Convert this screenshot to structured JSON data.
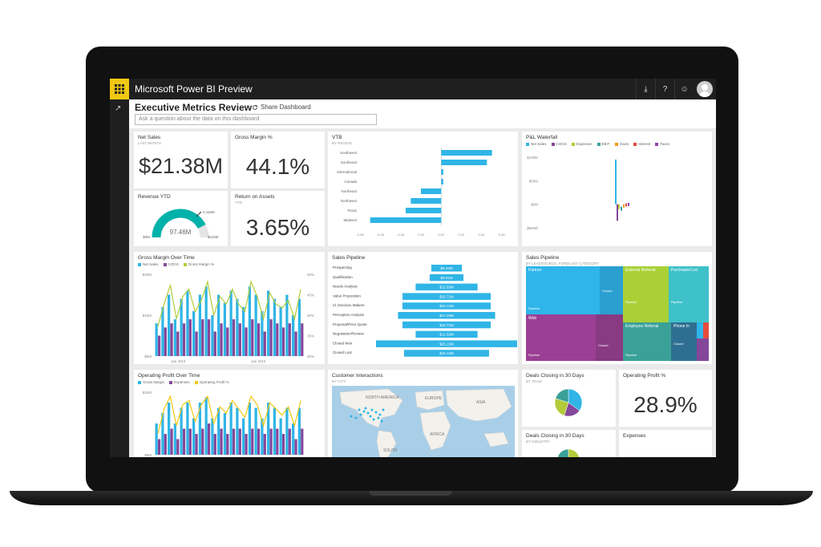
{
  "app": {
    "title": "Microsoft Power BI Preview"
  },
  "topbar": {
    "icons": [
      "download-icon",
      "help-icon",
      "feedback-icon",
      "user-avatar"
    ],
    "download": "⤓",
    "help": "?",
    "feedback": "☺"
  },
  "dashboard": {
    "title": "Executive Metrics Review",
    "share_label": "Share Dashboard",
    "qa_placeholder": "Ask a question about the data on this dashboard"
  },
  "tiles": {
    "net_sales": {
      "title": "Net Sales",
      "subtitle": "LAST MONTH",
      "value": "$21.38M"
    },
    "gross_margin": {
      "title": "Gross Margin %",
      "value": "44.1%"
    },
    "revenue_ytd": {
      "title": "Revenue YTD",
      "value": "97.46M",
      "min": "$0M",
      "max": "$115M",
      "target": "0.116M",
      "fraction": 0.85
    },
    "return_on_assets": {
      "title": "Return on Assets",
      "subtitle": "YTD",
      "value": "3.65%"
    },
    "operating_profit_pct": {
      "title": "Operating Profit %",
      "value": "28.9%"
    },
    "expenses": {
      "title": "Expenses"
    },
    "gm_over_time": {
      "title": "Gross Margin Over Time",
      "legend": [
        "Net Sales",
        "COGS",
        "Gross Margin %"
      ]
    },
    "op_over_time": {
      "title": "Operating Profit Over Time",
      "legend": [
        "Gross Margin",
        "Expenses",
        "Operating Profit %"
      ]
    },
    "customer_interactions": {
      "title": "Customer Interactions",
      "subtitle": "BY CITY",
      "labels": [
        "NORTH AMERICA",
        "EUROPE",
        "ASIA",
        "AFRICA",
        "SOUTH"
      ]
    },
    "deals_30_team": {
      "title": "Deals Closing in 30 Days",
      "subtitle": "BY TEAM"
    },
    "deals_30_industry": {
      "title": "Deals Closing in 30 Days",
      "subtitle": "BY INDUSTRY"
    },
    "sales_pipeline_tree": {
      "title": "Sales Pipeline",
      "subtitle": "BY LEADSOURCE, FORECAST CATEGORY",
      "blocks": [
        {
          "name": "Partner",
          "sub": "",
          "color": "#2fb5e9"
        },
        {
          "name": "External Referral",
          "sub": "Pipeline",
          "color": "#a9d037"
        },
        {
          "name": "Purchased List",
          "sub": "Pipeline",
          "color": "#3fc1c9"
        },
        {
          "name": "Web",
          "sub": "Pipeline",
          "color": "#9b3f94"
        },
        {
          "name": "Employee Referral",
          "sub": "Pipeline",
          "color": "#3aa198"
        },
        {
          "name": "Phone In",
          "sub": "Closed",
          "color": "#2e6f91"
        }
      ],
      "mini_labels": [
        "Closed",
        "Pipeline",
        "Closed",
        "Pipeline"
      ]
    }
  },
  "colors": {
    "blue": "#30b5e6",
    "purple": "#84479a",
    "lime": "#b4cc3a",
    "yellow": "#f2c811",
    "accent": "#00b2a9"
  },
  "chart_data": [
    {
      "type": "bar",
      "title": "VTB",
      "subtitle": "BY REGION",
      "categories": [
        "Southwest",
        "Southeast",
        "International",
        "Canada",
        "Northeast",
        "Northwest",
        "Texas",
        "Midwest"
      ],
      "values": [
        0.05,
        0.045,
        0.002,
        0.002,
        -0.02,
        -0.03,
        -0.035,
        -0.07
      ],
      "xticks": [
        "-0.08",
        "-0.06",
        "-0.04",
        "-0.02",
        "0.00",
        "0.02",
        "0.04",
        "0.06"
      ],
      "xlim": [
        -0.08,
        0.07
      ],
      "color": "#30b5e6"
    },
    {
      "type": "bar",
      "title": "P&L Waterfall",
      "legend": [
        "Net Sales",
        "COGS",
        "Expenses",
        "EBIT",
        "Gains",
        "Interest",
        "Taxes"
      ],
      "legend_colors": [
        "#30b5e6",
        "#84479a",
        "#b4cc3a",
        "#3aa198",
        "#f39c12",
        "#e74c3c",
        "#8e44ad"
      ],
      "yticks": [
        "$100M",
        "$50M",
        "$0M",
        "($50M)"
      ],
      "ylim": [
        -50,
        100
      ]
    },
    {
      "type": "bar",
      "title": "Sales Pipeline",
      "categories": [
        "Prospecting",
        "Qualification",
        "Needs Analysis",
        "Value Proposition",
        "Id. Decision Makers",
        "Perception Analysis",
        "Proposal/Price Quote",
        "Negotiation/Review",
        "Closed Won",
        "Closed Lost"
      ],
      "values": [
        5.44,
        6.01,
        11.03,
        15.71,
        15.71,
        17.29,
        15.71,
        11.02,
        25.13,
        15.13
      ],
      "labels": [
        "$5.44M",
        "$6.01M",
        "$11.03M",
        "$15.71M",
        "$15.71M",
        "$17.29M",
        "$15.71M",
        "$11.02M",
        "$25.13M",
        "$15.13M"
      ],
      "color": "#30b5e6"
    },
    {
      "type": "line",
      "title": "Gross Margin Over Time",
      "yticks_left": [
        "$20M",
        "$10M",
        "$0M"
      ],
      "yticks_right": [
        "50%",
        "45%",
        "40%",
        "35%",
        "30%"
      ],
      "xticks": [
        "Jan 2014",
        "Jan 2015"
      ],
      "series": [
        {
          "name": "Net Sales",
          "values": [
            8,
            12,
            15,
            9,
            14,
            16,
            11,
            15,
            17,
            10,
            15,
            13,
            16,
            14,
            12,
            17,
            15,
            11,
            16,
            14,
            12,
            15,
            10,
            14
          ]
        },
        {
          "name": "COGS",
          "values": [
            5,
            7,
            8,
            6,
            8,
            9,
            6,
            9,
            9,
            6,
            8,
            7,
            9,
            8,
            7,
            9,
            8,
            6,
            9,
            8,
            7,
            8,
            6,
            8
          ]
        },
        {
          "name": "Gross Margin %",
          "values": [
            38,
            44,
            49,
            40,
            46,
            48,
            42,
            45,
            50,
            41,
            46,
            44,
            48,
            44,
            42,
            50,
            46,
            40,
            47,
            44,
            43,
            45,
            40,
            48
          ]
        }
      ]
    },
    {
      "type": "line",
      "title": "Operating Profit Over Time",
      "yticks_left": [
        "$10M",
        "$5M"
      ],
      "series": [
        {
          "name": "Gross Margin",
          "values": [
            6,
            8,
            10,
            6,
            9,
            10,
            7,
            10,
            11,
            7,
            9,
            8,
            10,
            9,
            7,
            10,
            9,
            7,
            10,
            9,
            7,
            9,
            6,
            9
          ]
        },
        {
          "name": "Expenses",
          "values": [
            3,
            4,
            5,
            3,
            5,
            5,
            4,
            5,
            6,
            4,
            5,
            4,
            5,
            5,
            4,
            5,
            5,
            4,
            5,
            5,
            4,
            5,
            3,
            5
          ]
        },
        {
          "name": "Operating Profit %",
          "values": [
            20,
            32,
            38,
            24,
            34,
            36,
            26,
            34,
            38,
            25,
            33,
            30,
            36,
            32,
            28,
            38,
            34,
            24,
            35,
            32,
            29,
            33,
            24,
            36
          ]
        }
      ]
    },
    {
      "type": "pie",
      "title": "Deals Closing in 30 Days",
      "subtitle": "BY TEAM",
      "values": [
        35,
        20,
        25,
        20
      ],
      "colors": [
        "#30b5e6",
        "#84479a",
        "#b4cc3a",
        "#3aa198"
      ]
    },
    {
      "type": "pie",
      "title": "Deals Closing in 30 Days",
      "subtitle": "BY INDUSTRY",
      "values": [
        30,
        25,
        25,
        20
      ],
      "colors": [
        "#b4cc3a",
        "#30b5e6",
        "#84479a",
        "#3aa198"
      ]
    }
  ]
}
